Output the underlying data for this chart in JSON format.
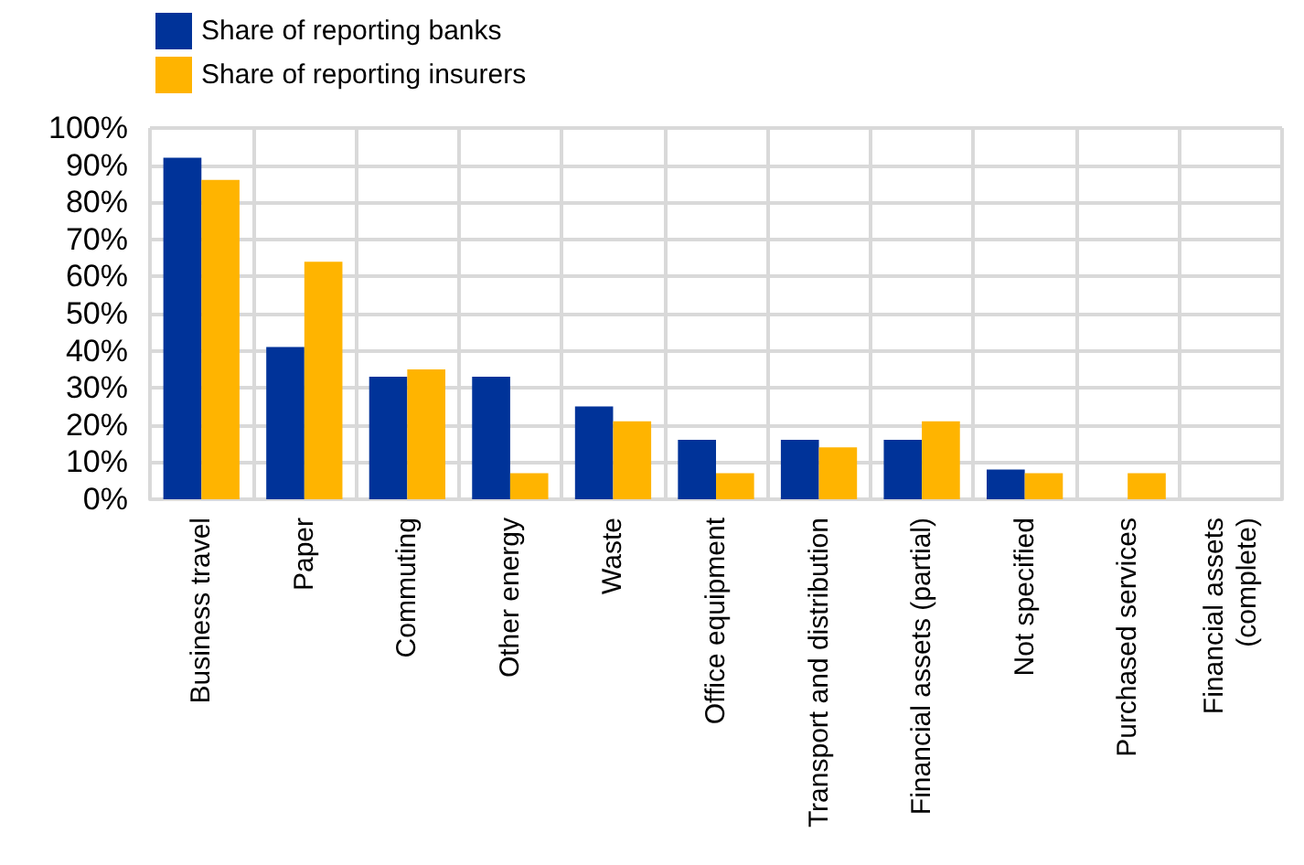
{
  "chart_data": {
    "type": "bar",
    "categories": [
      "Business travel",
      "Paper",
      "Commuting",
      "Other energy",
      "Waste",
      "Office equipment",
      "Transport and distribution",
      "Financial assets (partial)",
      "Not specified",
      "Purchased services",
      "Financial assets\n(complete)"
    ],
    "series": [
      {
        "name": "Share of reporting banks",
        "color": "#003399",
        "values": [
          92,
          41,
          33,
          33,
          25,
          16,
          16,
          16,
          8,
          0,
          0
        ]
      },
      {
        "name": "Share of reporting insurers",
        "color": "#ffb400",
        "values": [
          86,
          64,
          35,
          7,
          21,
          7,
          14,
          21,
          7,
          7,
          0
        ]
      }
    ],
    "ylim": [
      0,
      100
    ],
    "yticks": [
      {
        "value": 0,
        "label": "0%"
      },
      {
        "value": 10,
        "label": "10%"
      },
      {
        "value": 20,
        "label": "20%"
      },
      {
        "value": 30,
        "label": "30%"
      },
      {
        "value": 40,
        "label": "40%"
      },
      {
        "value": 50,
        "label": "50%"
      },
      {
        "value": 60,
        "label": "60%"
      },
      {
        "value": 70,
        "label": "70%"
      },
      {
        "value": 80,
        "label": "80%"
      },
      {
        "value": 90,
        "label": "90%"
      },
      {
        "value": 100,
        "label": "100%"
      }
    ],
    "grid": true,
    "legend": "top left"
  }
}
